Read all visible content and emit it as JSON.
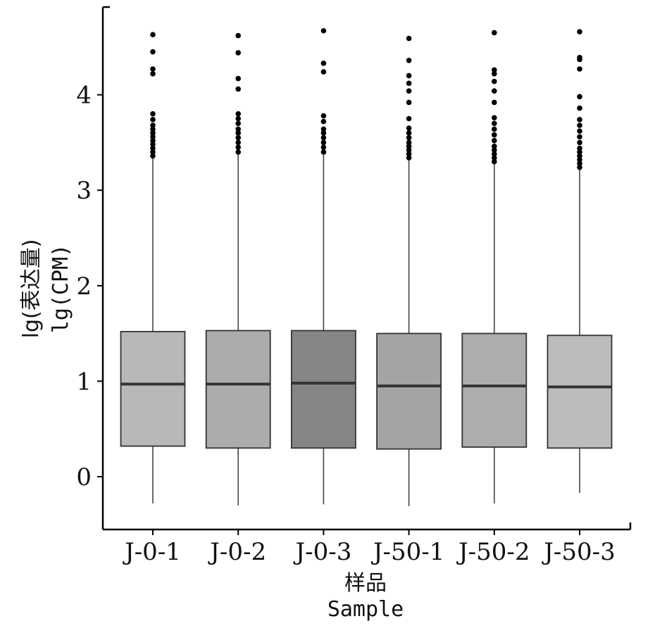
{
  "chart_data": {
    "type": "box",
    "title": "",
    "xlabel": [
      "样品",
      "Sample"
    ],
    "ylabel": [
      "lg(表达量)",
      "lg(CPM)"
    ],
    "ylim": [
      -0.55,
      4.9
    ],
    "yticks": [
      0,
      1,
      2,
      3,
      4
    ],
    "ytick_labels": [
      "0",
      "1",
      "2",
      "3",
      "4"
    ],
    "grid": false,
    "legend": "none",
    "categories": [
      "J-0-1",
      "J-0-2",
      "J-0-3",
      "J-50-1",
      "J-50-2",
      "J-50-3"
    ],
    "boxes": [
      {
        "whisker_low": -0.28,
        "q1": 0.32,
        "median": 0.97,
        "q3": 1.52,
        "whisker_high": 3.34,
        "outliers": [
          3.36,
          3.4,
          3.44,
          3.48,
          3.52,
          3.56,
          3.6,
          3.64,
          3.68,
          3.74,
          3.8,
          4.22,
          4.27,
          4.45,
          4.63
        ]
      },
      {
        "whisker_low": -0.3,
        "q1": 0.3,
        "median": 0.97,
        "q3": 1.53,
        "whisker_high": 3.39,
        "outliers": [
          3.4,
          3.45,
          3.5,
          3.55,
          3.6,
          3.64,
          3.7,
          3.75,
          3.8,
          4.06,
          4.17,
          4.44,
          4.62
        ]
      },
      {
        "whisker_low": -0.29,
        "q1": 0.3,
        "median": 0.98,
        "q3": 1.53,
        "whisker_high": 3.38,
        "outliers": [
          3.4,
          3.45,
          3.5,
          3.55,
          3.6,
          3.64,
          3.72,
          3.78,
          4.24,
          4.33,
          4.67
        ]
      },
      {
        "whisker_low": -0.31,
        "q1": 0.29,
        "median": 0.95,
        "q3": 1.5,
        "whisker_high": 3.33,
        "outliers": [
          3.34,
          3.38,
          3.42,
          3.46,
          3.5,
          3.55,
          3.6,
          3.65,
          3.75,
          3.92,
          4.04,
          4.12,
          4.2,
          4.36,
          4.59
        ]
      },
      {
        "whisker_low": -0.28,
        "q1": 0.31,
        "median": 0.95,
        "q3": 1.5,
        "whisker_high": 3.28,
        "outliers": [
          3.3,
          3.34,
          3.38,
          3.42,
          3.46,
          3.52,
          3.58,
          3.64,
          3.7,
          3.76,
          3.92,
          4.04,
          4.14,
          4.22,
          4.26,
          4.65
        ]
      },
      {
        "whisker_low": -0.17,
        "q1": 0.3,
        "median": 0.94,
        "q3": 1.48,
        "whisker_high": 3.23,
        "outliers": [
          3.24,
          3.28,
          3.32,
          3.36,
          3.4,
          3.44,
          3.5,
          3.56,
          3.62,
          3.68,
          3.74,
          3.86,
          3.98,
          4.27,
          4.37,
          4.39,
          4.66
        ]
      }
    ],
    "colors": {
      "box_fills": [
        "#b8b8b8",
        "#acacac",
        "#858585",
        "#a4a4a4",
        "#adadad",
        "#bcbcbc"
      ],
      "box_stroke": "#333333",
      "median": "#333333",
      "whisker": "#444444",
      "outlier": "#000000",
      "axis": "#000000"
    }
  }
}
